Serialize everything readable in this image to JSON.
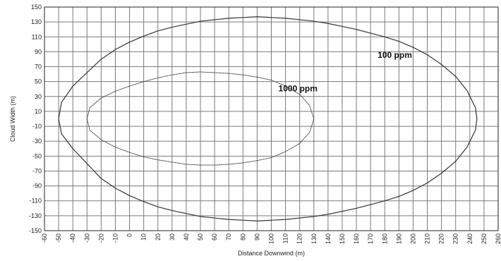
{
  "chart_data": {
    "type": "line",
    "title": "",
    "xlabel": "Distance Downwind (m)",
    "ylabel": "Cloud Width (m)",
    "xlim": [
      -60,
      260
    ],
    "ylim": [
      -150,
      150
    ],
    "x_ticks": [
      -60,
      -50,
      -40,
      -30,
      -20,
      -10,
      0,
      10,
      20,
      30,
      40,
      50,
      60,
      70,
      80,
      90,
      100,
      110,
      120,
      130,
      140,
      150,
      160,
      170,
      180,
      190,
      200,
      210,
      220,
      230,
      240,
      250,
      260
    ],
    "y_ticks": [
      150,
      130,
      110,
      90,
      70,
      50,
      30,
      10,
      -10,
      -30,
      -50,
      -70,
      -90,
      -110,
      -130,
      -150
    ],
    "grid": true,
    "series": [
      {
        "name": "100 ppm",
        "style": "solid",
        "color": "#333333",
        "points": [
          [
            -50,
            0
          ],
          [
            -48,
            -20
          ],
          [
            -40,
            -40
          ],
          [
            -30,
            -60
          ],
          [
            -20,
            -80
          ],
          [
            -10,
            -93
          ],
          [
            0,
            -103
          ],
          [
            10,
            -111
          ],
          [
            20,
            -118
          ],
          [
            30,
            -123
          ],
          [
            40,
            -127
          ],
          [
            50,
            -131
          ],
          [
            60,
            -133
          ],
          [
            70,
            -135
          ],
          [
            80,
            -136
          ],
          [
            90,
            -137
          ],
          [
            100,
            -136
          ],
          [
            110,
            -135
          ],
          [
            120,
            -133
          ],
          [
            130,
            -131
          ],
          [
            140,
            -128
          ],
          [
            150,
            -124
          ],
          [
            160,
            -120
          ],
          [
            170,
            -115
          ],
          [
            180,
            -110
          ],
          [
            190,
            -104
          ],
          [
            200,
            -96
          ],
          [
            210,
            -86
          ],
          [
            220,
            -73
          ],
          [
            230,
            -57
          ],
          [
            238,
            -38
          ],
          [
            244,
            -15
          ],
          [
            245,
            0
          ],
          [
            244,
            15
          ],
          [
            238,
            38
          ],
          [
            230,
            57
          ],
          [
            220,
            73
          ],
          [
            210,
            86
          ],
          [
            200,
            96
          ],
          [
            190,
            104
          ],
          [
            180,
            110
          ],
          [
            170,
            115
          ],
          [
            160,
            120
          ],
          [
            150,
            124
          ],
          [
            140,
            128
          ],
          [
            130,
            131
          ],
          [
            120,
            133
          ],
          [
            110,
            135
          ],
          [
            100,
            136
          ],
          [
            90,
            137
          ],
          [
            80,
            136
          ],
          [
            70,
            135
          ],
          [
            60,
            133
          ],
          [
            50,
            131
          ],
          [
            40,
            127
          ],
          [
            30,
            123
          ],
          [
            20,
            118
          ],
          [
            10,
            111
          ],
          [
            0,
            103
          ],
          [
            -10,
            93
          ],
          [
            -20,
            80
          ],
          [
            -30,
            62
          ],
          [
            -40,
            44
          ],
          [
            -48,
            22
          ],
          [
            -50,
            0
          ]
        ]
      },
      {
        "name": "1000 ppm",
        "style": "dotted",
        "color": "#444444",
        "points": [
          [
            -30,
            0
          ],
          [
            -28,
            -15
          ],
          [
            -20,
            -28
          ],
          [
            -10,
            -38
          ],
          [
            0,
            -45
          ],
          [
            10,
            -51
          ],
          [
            20,
            -55
          ],
          [
            30,
            -58
          ],
          [
            40,
            -61
          ],
          [
            50,
            -62
          ],
          [
            60,
            -62
          ],
          [
            70,
            -61
          ],
          [
            80,
            -59
          ],
          [
            90,
            -56
          ],
          [
            100,
            -52
          ],
          [
            110,
            -44
          ],
          [
            120,
            -33
          ],
          [
            127,
            -18
          ],
          [
            130,
            0
          ],
          [
            127,
            18
          ],
          [
            120,
            33
          ],
          [
            110,
            44
          ],
          [
            100,
            52
          ],
          [
            90,
            56
          ],
          [
            80,
            59
          ],
          [
            70,
            61
          ],
          [
            60,
            62
          ],
          [
            50,
            63
          ],
          [
            40,
            62
          ],
          [
            30,
            59
          ],
          [
            20,
            55
          ],
          [
            10,
            50
          ],
          [
            0,
            44
          ],
          [
            -10,
            37
          ],
          [
            -20,
            28
          ],
          [
            -28,
            15
          ],
          [
            -30,
            0
          ]
        ]
      }
    ],
    "annotations": [
      {
        "text": "100 ppm",
        "x": 175,
        "y": 82
      },
      {
        "text": "1000 ppm",
        "x": 105,
        "y": 37
      }
    ]
  }
}
